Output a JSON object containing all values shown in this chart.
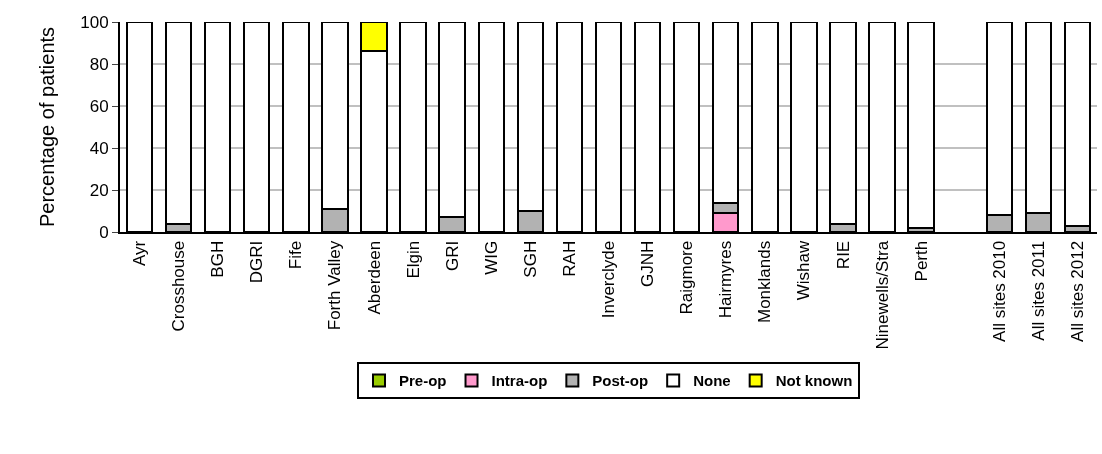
{
  "chart_data": {
    "type": "bar",
    "stacked": true,
    "ylabel": "Percentage of patients",
    "ylim": [
      0,
      100
    ],
    "yticks": [
      0,
      20,
      40,
      60,
      80,
      100
    ],
    "grid": "y",
    "legend": "bottom",
    "categories": [
      "Ayr",
      "Crosshouse",
      "BGH",
      "DGRI",
      "Fife",
      "Forth Valley",
      "Aberdeen",
      "Elgin",
      "GRI",
      "WIG",
      "SGH",
      "RAH",
      "Inverclyde",
      "GJNH",
      "Raigmore",
      "Hairmyres",
      "Monklands",
      "Wishaw",
      "RIE",
      "Ninewells/Stra",
      "Perth",
      null,
      "All sites 2010",
      "All sites 2011",
      "All sites 2012"
    ],
    "series": [
      {
        "name": "Pre-op",
        "color": "#99cc00",
        "values": [
          null,
          null,
          null,
          null,
          null,
          null,
          null,
          null,
          null,
          null,
          null,
          null,
          null,
          null,
          null,
          null,
          null,
          null,
          null,
          null,
          null,
          null,
          null,
          null,
          null
        ]
      },
      {
        "name": "Intra-op",
        "color": "#ff99cc",
        "values": [
          null,
          null,
          null,
          null,
          null,
          null,
          null,
          null,
          null,
          null,
          null,
          null,
          null,
          null,
          null,
          9,
          null,
          null,
          null,
          null,
          null,
          null,
          null,
          null,
          null
        ]
      },
      {
        "name": "Post-op",
        "color": "#b2b2b2",
        "values": [
          null,
          4,
          null,
          null,
          null,
          11,
          null,
          null,
          7,
          null,
          10,
          null,
          null,
          null,
          null,
          5,
          null,
          null,
          4,
          null,
          2,
          null,
          8,
          9,
          3
        ]
      },
      {
        "name": "None",
        "color": "#ffffff",
        "values": [
          100,
          96,
          100,
          100,
          100,
          89,
          86,
          100,
          93,
          100,
          90,
          100,
          100,
          100,
          100,
          86,
          100,
          100,
          96,
          100,
          98,
          null,
          92,
          91,
          97
        ]
      },
      {
        "name": "Not known",
        "color": "#ffff00",
        "values": [
          null,
          null,
          null,
          null,
          null,
          null,
          14,
          null,
          null,
          null,
          null,
          null,
          null,
          null,
          null,
          null,
          null,
          null,
          null,
          null,
          null,
          null,
          null,
          null,
          null
        ]
      }
    ]
  }
}
